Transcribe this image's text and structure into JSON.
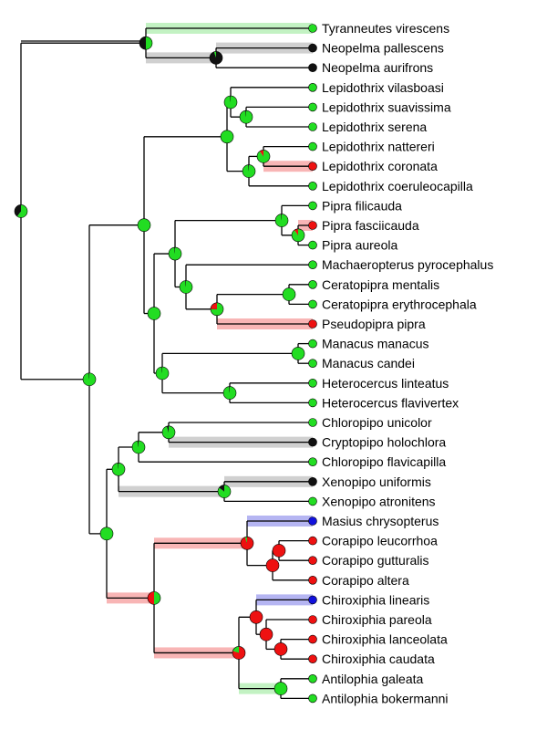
{
  "state_colors": {
    "green": "#22dd22",
    "red": "#ee1111",
    "black": "#111111",
    "blue": "#1010dd"
  },
  "taxa": [
    {
      "name": "Tyranneutes virescens",
      "state": "green"
    },
    {
      "name": "Neopelma pallescens",
      "state": "black"
    },
    {
      "name": "Neopelma aurifrons",
      "state": "black"
    },
    {
      "name": "Lepidothrix vilasboasi",
      "state": "green"
    },
    {
      "name": "Lepidothrix suavissima",
      "state": "green"
    },
    {
      "name": "Lepidothrix serena",
      "state": "green"
    },
    {
      "name": "Lepidothrix nattereri",
      "state": "green"
    },
    {
      "name": "Lepidothrix coronata",
      "state": "red"
    },
    {
      "name": "Lepidothrix coeruleocapilla",
      "state": "green"
    },
    {
      "name": "Pipra filicauda",
      "state": "green"
    },
    {
      "name": "Pipra fasciicauda",
      "state": "red"
    },
    {
      "name": "Pipra aureola",
      "state": "green"
    },
    {
      "name": "Machaeropterus pyrocephalus",
      "state": "green"
    },
    {
      "name": "Ceratopipra mentalis",
      "state": "green"
    },
    {
      "name": "Ceratopipra erythrocephala",
      "state": "green"
    },
    {
      "name": "Pseudopipra pipra",
      "state": "red"
    },
    {
      "name": "Manacus manacus",
      "state": "green"
    },
    {
      "name": "Manacus candei",
      "state": "green"
    },
    {
      "name": "Heterocercus linteatus",
      "state": "green"
    },
    {
      "name": "Heterocercus flavivertex",
      "state": "green"
    },
    {
      "name": "Chloropipo unicolor",
      "state": "green"
    },
    {
      "name": "Cryptopipo holochlora",
      "state": "black"
    },
    {
      "name": "Chloropipo flavicapilla",
      "state": "green"
    },
    {
      "name": "Xenopipo uniformis",
      "state": "black"
    },
    {
      "name": "Xenopipo atronitens",
      "state": "green"
    },
    {
      "name": "Masius chrysopterus",
      "state": "blue"
    },
    {
      "name": "Corapipo leucorrhoa",
      "state": "red"
    },
    {
      "name": "Corapipo gutturalis",
      "state": "red"
    },
    {
      "name": "Corapipo altera",
      "state": "red"
    },
    {
      "name": "Chiroxiphia linearis",
      "state": "blue"
    },
    {
      "name": "Chiroxiphia pareola",
      "state": "red"
    },
    {
      "name": "Chiroxiphia lanceolata",
      "state": "red"
    },
    {
      "name": "Chiroxiphia caudata",
      "state": "red"
    },
    {
      "name": "Antilophia galeata",
      "state": "green"
    },
    {
      "name": "Antilophia bokermanni",
      "state": "green"
    }
  ],
  "nodes": [
    {
      "id": "root",
      "pie": [
        {
          "s": "green",
          "f": 0.6
        },
        {
          "s": "black",
          "f": 0.4
        }
      ]
    },
    {
      "id": "n_tyr_neo",
      "pie": [
        {
          "s": "green",
          "f": 0.5
        },
        {
          "s": "black",
          "f": 0.5
        }
      ]
    },
    {
      "id": "n_neo",
      "pie": [
        {
          "s": "black",
          "f": 0.95
        },
        {
          "s": "green",
          "f": 0.05
        }
      ]
    },
    {
      "id": "n_core",
      "pie": [
        {
          "s": "green",
          "f": 0.98
        },
        {
          "s": "black",
          "f": 0.02
        }
      ]
    },
    {
      "id": "n_upper",
      "pie": [
        {
          "s": "green",
          "f": 1
        }
      ]
    },
    {
      "id": "n_lep",
      "pie": [
        {
          "s": "green",
          "f": 1
        }
      ]
    },
    {
      "id": "n_lep1",
      "pie": [
        {
          "s": "green",
          "f": 0.98
        },
        {
          "s": "black",
          "f": 0.02
        }
      ]
    },
    {
      "id": "n_lep1b",
      "pie": [
        {
          "s": "green",
          "f": 0.98
        },
        {
          "s": "black",
          "f": 0.02
        }
      ]
    },
    {
      "id": "n_lep2",
      "pie": [
        {
          "s": "green",
          "f": 0.98
        },
        {
          "s": "black",
          "f": 0.02
        }
      ]
    },
    {
      "id": "n_lep2b",
      "pie": [
        {
          "s": "green",
          "f": 0.9
        },
        {
          "s": "red",
          "f": 0.1
        }
      ]
    },
    {
      "id": "n_pip_big",
      "pie": [
        {
          "s": "green",
          "f": 1
        }
      ]
    },
    {
      "id": "n_pip_a",
      "pie": [
        {
          "s": "green",
          "f": 0.98
        },
        {
          "s": "black",
          "f": 0.02
        }
      ]
    },
    {
      "id": "n_pipra",
      "pie": [
        {
          "s": "green",
          "f": 0.98
        },
        {
          "s": "black",
          "f": 0.02
        }
      ]
    },
    {
      "id": "n_pipra2",
      "pie": [
        {
          "s": "green",
          "f": 0.9
        },
        {
          "s": "red",
          "f": 0.1
        }
      ]
    },
    {
      "id": "n_mach",
      "pie": [
        {
          "s": "green",
          "f": 0.98
        },
        {
          "s": "black",
          "f": 0.02
        }
      ]
    },
    {
      "id": "n_cer_ps",
      "pie": [
        {
          "s": "green",
          "f": 0.75
        },
        {
          "s": "red",
          "f": 0.25
        }
      ]
    },
    {
      "id": "n_cer",
      "pie": [
        {
          "s": "green",
          "f": 1
        }
      ]
    },
    {
      "id": "n_man_het",
      "pie": [
        {
          "s": "green",
          "f": 0.98
        },
        {
          "s": "black",
          "f": 0.02
        }
      ]
    },
    {
      "id": "n_man",
      "pie": [
        {
          "s": "green",
          "f": 1
        }
      ]
    },
    {
      "id": "n_het",
      "pie": [
        {
          "s": "green",
          "f": 0.98
        },
        {
          "s": "black",
          "f": 0.02
        }
      ]
    },
    {
      "id": "n_lower",
      "pie": [
        {
          "s": "green",
          "f": 1
        }
      ]
    },
    {
      "id": "n_xen_grp",
      "pie": [
        {
          "s": "green",
          "f": 0.98
        },
        {
          "s": "black",
          "f": 0.02
        }
      ]
    },
    {
      "id": "n_chl",
      "pie": [
        {
          "s": "green",
          "f": 0.97
        },
        {
          "s": "black",
          "f": 0.03
        }
      ]
    },
    {
      "id": "n_chl2",
      "pie": [
        {
          "s": "green",
          "f": 0.95
        },
        {
          "s": "black",
          "f": 0.05
        }
      ]
    },
    {
      "id": "n_xen",
      "pie": [
        {
          "s": "green",
          "f": 0.85
        },
        {
          "s": "black",
          "f": 0.15
        }
      ]
    },
    {
      "id": "n_bot",
      "pie": [
        {
          "s": "green",
          "f": 0.98
        },
        {
          "s": "black",
          "f": 0.02
        }
      ]
    },
    {
      "id": "n_chir_grp",
      "pie": [
        {
          "s": "green",
          "f": 0.5
        },
        {
          "s": "red",
          "f": 0.5
        }
      ]
    },
    {
      "id": "n_mas_cor",
      "pie": [
        {
          "s": "red",
          "f": 0.95
        },
        {
          "s": "green",
          "f": 0.05
        }
      ]
    },
    {
      "id": "n_cor",
      "pie": [
        {
          "s": "red",
          "f": 1
        }
      ]
    },
    {
      "id": "n_cor2",
      "pie": [
        {
          "s": "red",
          "f": 1
        }
      ]
    },
    {
      "id": "n_chir_ant",
      "pie": [
        {
          "s": "red",
          "f": 0.8
        },
        {
          "s": "green",
          "f": 0.2
        }
      ]
    },
    {
      "id": "n_chir",
      "pie": [
        {
          "s": "red",
          "f": 1
        }
      ]
    },
    {
      "id": "n_chir2",
      "pie": [
        {
          "s": "red",
          "f": 1
        }
      ]
    },
    {
      "id": "n_chir3",
      "pie": [
        {
          "s": "red",
          "f": 1
        }
      ]
    },
    {
      "id": "n_ant",
      "pie": [
        {
          "s": "green",
          "f": 1
        }
      ]
    }
  ]
}
